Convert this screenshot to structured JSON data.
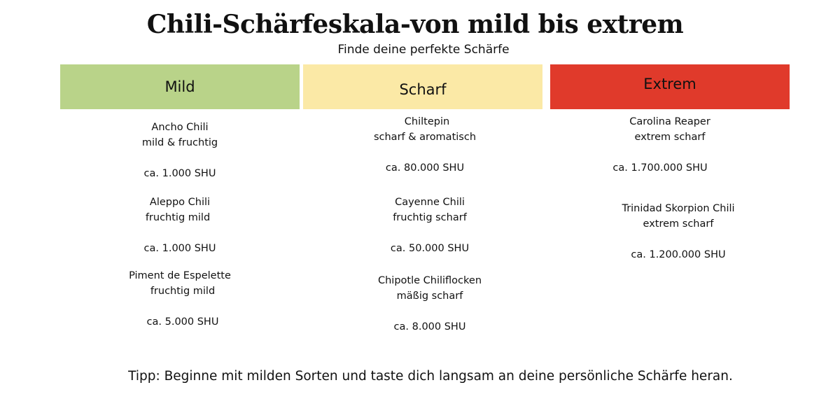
{
  "title": "Chili-Schärfeskala-von mild bis extrem",
  "subtitle": "Finde deine perfekte Schärfe",
  "columns": [
    {
      "label": "Mild",
      "color": "#b9d389",
      "items": [
        {
          "name": "Ancho Chili",
          "desc": "mild & fruchtig",
          "shu": "ca. 1.000 SHU"
        },
        {
          "name": "Aleppo Chili",
          "desc": "fruchtig mild",
          "shu": "ca. 1.000 SHU"
        },
        {
          "name": "Piment de Espelette",
          "desc": "fruchtig mild",
          "shu": "ca. 5.000 SHU"
        }
      ]
    },
    {
      "label": "Scharf",
      "color": "#fbe9a6",
      "items": [
        {
          "name": "Chiltepin",
          "desc": "scharf & aromatisch",
          "shu": "ca. 80.000 SHU"
        },
        {
          "name": "Cayenne Chili",
          "desc": "fruchtig scharf",
          "shu": "ca. 50.000 SHU"
        },
        {
          "name": "Chipotle Chiliflocken",
          "desc": "mäßig scharf",
          "shu": "ca. 8.000 SHU"
        }
      ]
    },
    {
      "label": "Extrem",
      "color": "#e03a2b",
      "items": [
        {
          "name": "Carolina Reaper",
          "desc": "extrem scharf",
          "shu": "ca. 1.700.000 SHU"
        },
        {
          "name": "Trinidad Skorpion Chili",
          "desc": "extrem scharf",
          "shu": "ca. 1.200.000 SHU"
        }
      ]
    }
  ],
  "tip": "Tipp: Beginne mit milden Sorten und taste dich langsam an deine persönliche Schärfe heran."
}
